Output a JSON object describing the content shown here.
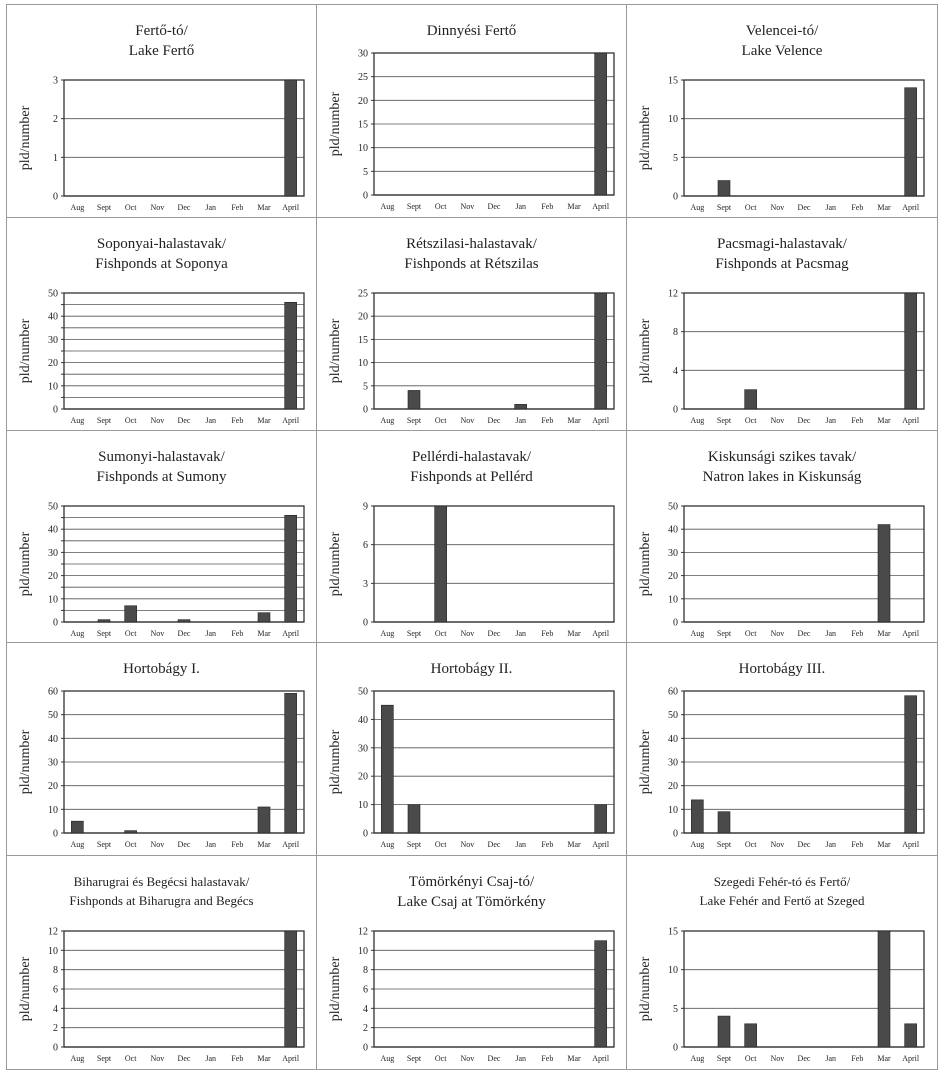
{
  "months": [
    "Aug",
    "Sept",
    "Oct",
    "Nov",
    "Dec",
    "Jan",
    "Feb",
    "Mar",
    "April"
  ],
  "ylabel": "pld/number",
  "bar_color": "#4a4a4a",
  "chart_data": [
    {
      "type": "bar",
      "title": "Fertő-tó/",
      "subtitle": "Lake Fertő",
      "ylabel": "pld/number",
      "ylim": [
        0,
        3
      ],
      "yticks": [
        0,
        1,
        2,
        3
      ],
      "categories": [
        "Aug",
        "Sept",
        "Oct",
        "Nov",
        "Dec",
        "Jan",
        "Feb",
        "Mar",
        "April"
      ],
      "values": [
        0,
        0,
        0,
        0,
        0,
        0,
        0,
        0,
        3
      ]
    },
    {
      "type": "bar",
      "title": "Dinnyési Fertő",
      "subtitle": "",
      "ylabel": "pld/number",
      "ylim": [
        0,
        30
      ],
      "yticks": [
        0,
        5,
        10,
        15,
        20,
        25,
        30
      ],
      "categories": [
        "Aug",
        "Sept",
        "Oct",
        "Nov",
        "Dec",
        "Jan",
        "Feb",
        "Mar",
        "April"
      ],
      "values": [
        0,
        0,
        0,
        0,
        0,
        0,
        0,
        0,
        30
      ]
    },
    {
      "type": "bar",
      "title": "Velencei-tó/",
      "subtitle": "Lake Velence",
      "ylabel": "pld/number",
      "ylim": [
        0,
        15
      ],
      "yticks": [
        0,
        5,
        10,
        15
      ],
      "categories": [
        "Aug",
        "Sept",
        "Oct",
        "Nov",
        "Dec",
        "Jan",
        "Feb",
        "Mar",
        "April"
      ],
      "values": [
        0,
        2,
        0,
        0,
        0,
        0,
        0,
        0,
        14
      ]
    },
    {
      "type": "bar",
      "title": "Soponyai-halastavak/",
      "subtitle": "Fishponds at Soponya",
      "ylabel": "pld/number",
      "ylim": [
        0,
        50
      ],
      "yticks": [
        0,
        5,
        10,
        15,
        20,
        25,
        30,
        35,
        40,
        45,
        50
      ],
      "ytick_labels": [
        0,
        10,
        20,
        30,
        40,
        50
      ],
      "categories": [
        "Aug",
        "Sept",
        "Oct",
        "Nov",
        "Dec",
        "Jan",
        "Feb",
        "Mar",
        "April"
      ],
      "values": [
        0,
        0,
        0,
        0,
        0,
        0,
        0,
        0,
        46
      ]
    },
    {
      "type": "bar",
      "title": "Rétszilasi-halastavak/",
      "subtitle": "Fishponds at Rétszilas",
      "ylabel": "pld/number",
      "ylim": [
        0,
        25
      ],
      "yticks": [
        0,
        5,
        10,
        15,
        20,
        25
      ],
      "categories": [
        "Aug",
        "Sept",
        "Oct",
        "Nov",
        "Dec",
        "Jan",
        "Feb",
        "Mar",
        "April"
      ],
      "values": [
        0,
        4,
        0,
        0,
        0,
        1,
        0,
        0,
        25
      ]
    },
    {
      "type": "bar",
      "title": "Pacsmagi-halastavak/",
      "subtitle": "Fishponds at Pacsmag",
      "ylabel": "pld/number",
      "ylim": [
        0,
        12
      ],
      "yticks": [
        0,
        4,
        8,
        12
      ],
      "categories": [
        "Aug",
        "Sept",
        "Oct",
        "Nov",
        "Dec",
        "Jan",
        "Feb",
        "Mar",
        "April"
      ],
      "values": [
        0,
        0,
        2,
        0,
        0,
        0,
        0,
        0,
        12
      ]
    },
    {
      "type": "bar",
      "title": "Sumonyi-halastavak/",
      "subtitle": "Fishponds at Sumony",
      "ylabel": "pld/number",
      "ylim": [
        0,
        50
      ],
      "yticks": [
        0,
        5,
        10,
        15,
        20,
        25,
        30,
        35,
        40,
        45,
        50
      ],
      "ytick_labels": [
        0,
        10,
        20,
        30,
        40,
        50
      ],
      "categories": [
        "Aug",
        "Sept",
        "Oct",
        "Nov",
        "Dec",
        "Jan",
        "Feb",
        "Mar",
        "April"
      ],
      "values": [
        0,
        1,
        7,
        0,
        1,
        0,
        0,
        4,
        46
      ]
    },
    {
      "type": "bar",
      "title": "Pellérdi-halastavak/",
      "subtitle": "Fishponds at Pellérd",
      "ylabel": "pld/number",
      "ylim": [
        0,
        9
      ],
      "yticks": [
        0,
        3,
        6,
        9
      ],
      "categories": [
        "Aug",
        "Sept",
        "Oct",
        "Nov",
        "Dec",
        "Jan",
        "Feb",
        "Mar",
        "April"
      ],
      "values": [
        0,
        0,
        9,
        0,
        0,
        0,
        0,
        0,
        0
      ]
    },
    {
      "type": "bar",
      "title": "Kiskunsági szikes tavak/",
      "subtitle": "Natron lakes in Kiskunság",
      "ylabel": "pld/number",
      "ylim": [
        0,
        50
      ],
      "yticks": [
        0,
        10,
        20,
        30,
        40,
        50
      ],
      "categories": [
        "Aug",
        "Sept",
        "Oct",
        "Nov",
        "Dec",
        "Jan",
        "Feb",
        "Mar",
        "April"
      ],
      "values": [
        0,
        0,
        0,
        0,
        0,
        0,
        0,
        42,
        0
      ]
    },
    {
      "type": "bar",
      "title": "Hortobágy I.",
      "subtitle": "",
      "ylabel": "pld/number",
      "ylim": [
        0,
        60
      ],
      "yticks": [
        0,
        10,
        20,
        30,
        40,
        50,
        60
      ],
      "categories": [
        "Aug",
        "Sept",
        "Oct",
        "Nov",
        "Dec",
        "Jan",
        "Feb",
        "Mar",
        "April"
      ],
      "values": [
        5,
        0,
        1,
        0,
        0,
        0,
        0,
        11,
        59
      ]
    },
    {
      "type": "bar",
      "title": "Hortobágy II.",
      "subtitle": "",
      "ylabel": "pld/number",
      "ylim": [
        0,
        50
      ],
      "yticks": [
        0,
        10,
        20,
        30,
        40,
        50
      ],
      "categories": [
        "Aug",
        "Sept",
        "Oct",
        "Nov",
        "Dec",
        "Jan",
        "Feb",
        "Mar",
        "April"
      ],
      "values": [
        45,
        10,
        0,
        0,
        0,
        0,
        0,
        0,
        10
      ]
    },
    {
      "type": "bar",
      "title": "Hortobágy III.",
      "subtitle": "",
      "ylabel": "pld/number",
      "ylim": [
        0,
        60
      ],
      "yticks": [
        0,
        10,
        20,
        30,
        40,
        50,
        60
      ],
      "categories": [
        "Aug",
        "Sept",
        "Oct",
        "Nov",
        "Dec",
        "Jan",
        "Feb",
        "Mar",
        "April"
      ],
      "values": [
        14,
        9,
        0,
        0,
        0,
        0,
        0,
        0,
        58
      ]
    },
    {
      "type": "bar",
      "title": "Biharugrai és Begécsi halastavak/",
      "subtitle": "Fishponds at Biharugra and Begécs",
      "ylabel": "pld/number",
      "ylim": [
        0,
        12
      ],
      "yticks": [
        0,
        2,
        4,
        6,
        8,
        10,
        12
      ],
      "categories": [
        "Aug",
        "Sept",
        "Oct",
        "Nov",
        "Dec",
        "Jan",
        "Feb",
        "Mar",
        "April"
      ],
      "values": [
        0,
        0,
        0,
        0,
        0,
        0,
        0,
        0,
        12
      ]
    },
    {
      "type": "bar",
      "title": "Tömörkényi Csaj-tó/",
      "subtitle": "Lake Csaj at Tömörkény",
      "ylabel": "pld/number",
      "ylim": [
        0,
        12
      ],
      "yticks": [
        0,
        2,
        4,
        6,
        8,
        10,
        12
      ],
      "categories": [
        "Aug",
        "Sept",
        "Oct",
        "Nov",
        "Dec",
        "Jan",
        "Feb",
        "Mar",
        "April"
      ],
      "values": [
        0,
        0,
        0,
        0,
        0,
        0,
        0,
        0,
        11
      ]
    },
    {
      "type": "bar",
      "title": "Szegedi Fehér-tó és Fertő/",
      "subtitle": "Lake Fehér and Fertő at Szeged",
      "ylabel": "pld/number",
      "ylim": [
        0,
        15
      ],
      "yticks": [
        0,
        5,
        10,
        15
      ],
      "categories": [
        "Aug",
        "Sept",
        "Oct",
        "Nov",
        "Dec",
        "Jan",
        "Feb",
        "Mar",
        "April"
      ],
      "values": [
        0,
        4,
        3,
        0,
        0,
        0,
        0,
        15,
        3
      ]
    }
  ]
}
